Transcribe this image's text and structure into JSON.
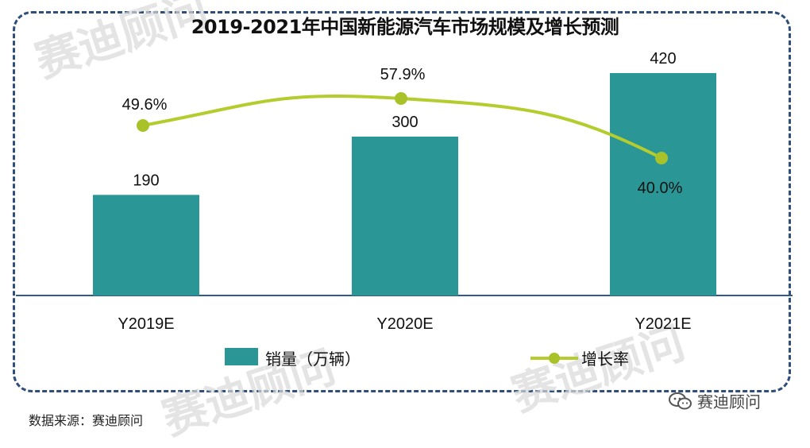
{
  "title": "2019-2021年中国新能源汽车市场规模及增长预测",
  "source": "数据来源：赛迪顾问",
  "brand": "赛迪顾问",
  "watermark": "赛迪顾问",
  "colors": {
    "bar": "#2a9796",
    "line": "#b5cc2e",
    "marker": "#a9c22a",
    "axis": "#2f5a8a",
    "frame": "#2f4f7a"
  },
  "chart_data": {
    "type": "bar",
    "categories": [
      "Y2019E",
      "Y2020E",
      "Y2021E"
    ],
    "series": [
      {
        "name": "销量（万辆）",
        "type": "bar",
        "values": [
          190,
          300,
          420
        ],
        "labels": [
          "190",
          "300",
          "420"
        ]
      },
      {
        "name": "增长率",
        "type": "line",
        "values": [
          49.6,
          57.9,
          40.0
        ],
        "labels": [
          "49.6%",
          "57.9%",
          "40.0%"
        ]
      }
    ],
    "title": "2019-2021年中国新能源汽车市场规模及增长预测",
    "legend": "bottom"
  }
}
